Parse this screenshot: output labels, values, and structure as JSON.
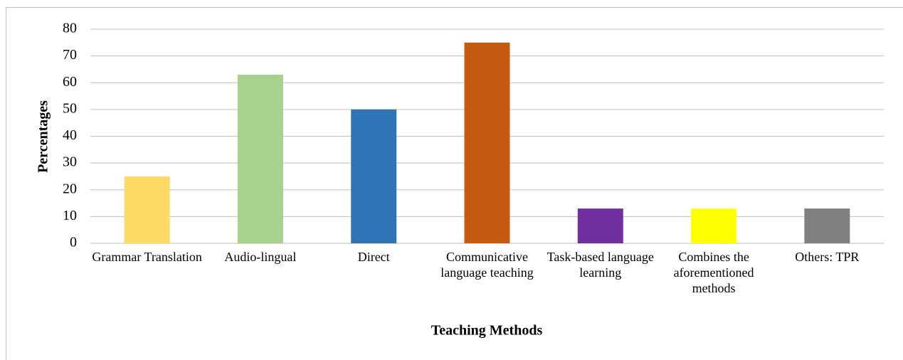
{
  "chart_data": {
    "type": "bar",
    "categories": [
      "Grammar Translation",
      "Audio-lingual",
      "Direct",
      "Communicative language teaching",
      "Task-based language learning",
      "Combines the aforementioned methods",
      "Others: TPR"
    ],
    "values": [
      25,
      63,
      50,
      75,
      13,
      13,
      13
    ],
    "colors": [
      "#FFD966",
      "#A9D18E",
      "#2E75B6",
      "#C55A11",
      "#7030A0",
      "#FFFF00",
      "#808080"
    ],
    "x_label": "Teaching Methods",
    "y_label": "Percentages",
    "ylim": [
      0,
      80
    ],
    "yticks": [
      0,
      10,
      20,
      30,
      40,
      50,
      60,
      70,
      80
    ],
    "grid": true
  }
}
